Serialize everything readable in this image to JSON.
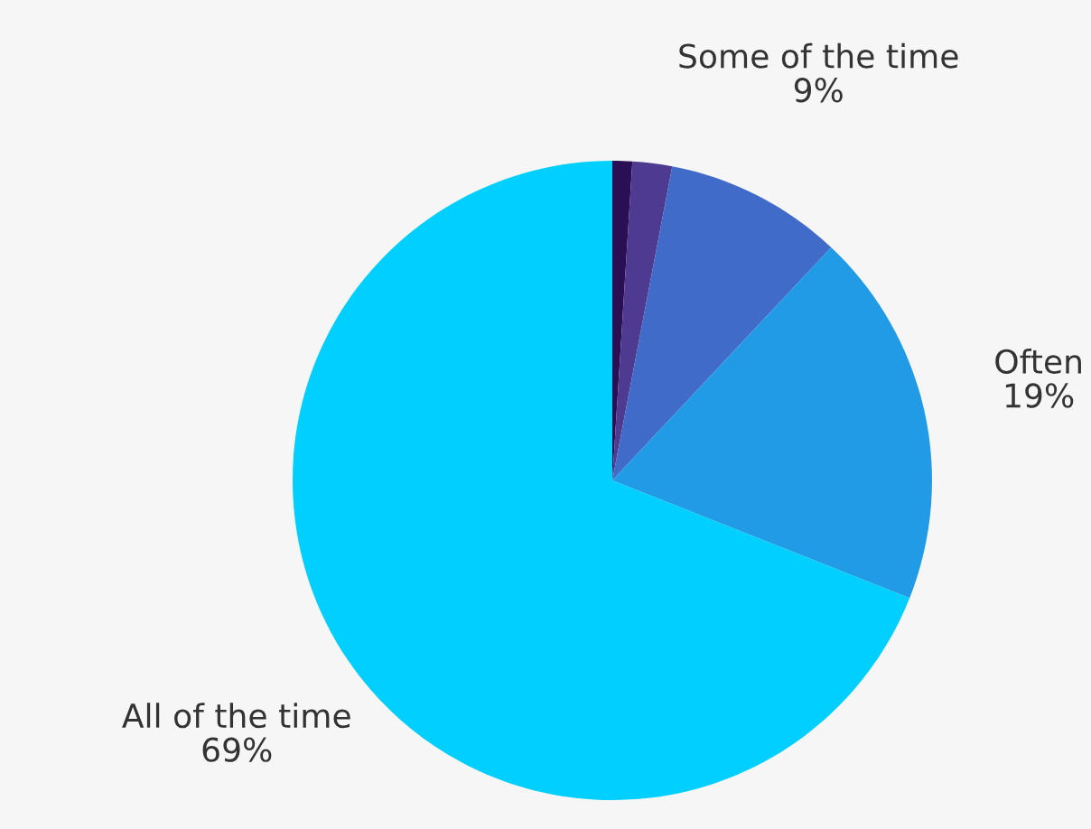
{
  "chart_data": {
    "type": "pie",
    "categories": [
      null,
      null,
      "Some of the time",
      "Often",
      "All of the time"
    ],
    "values": [
      1,
      2,
      9,
      19,
      69
    ],
    "value_labels": [
      null,
      null,
      "9%",
      "19%",
      "69%"
    ],
    "colors": [
      "#2a0f55",
      "#4f3a91",
      "#416bc9",
      "#229be6",
      "#00cfff"
    ],
    "legend": false
  }
}
